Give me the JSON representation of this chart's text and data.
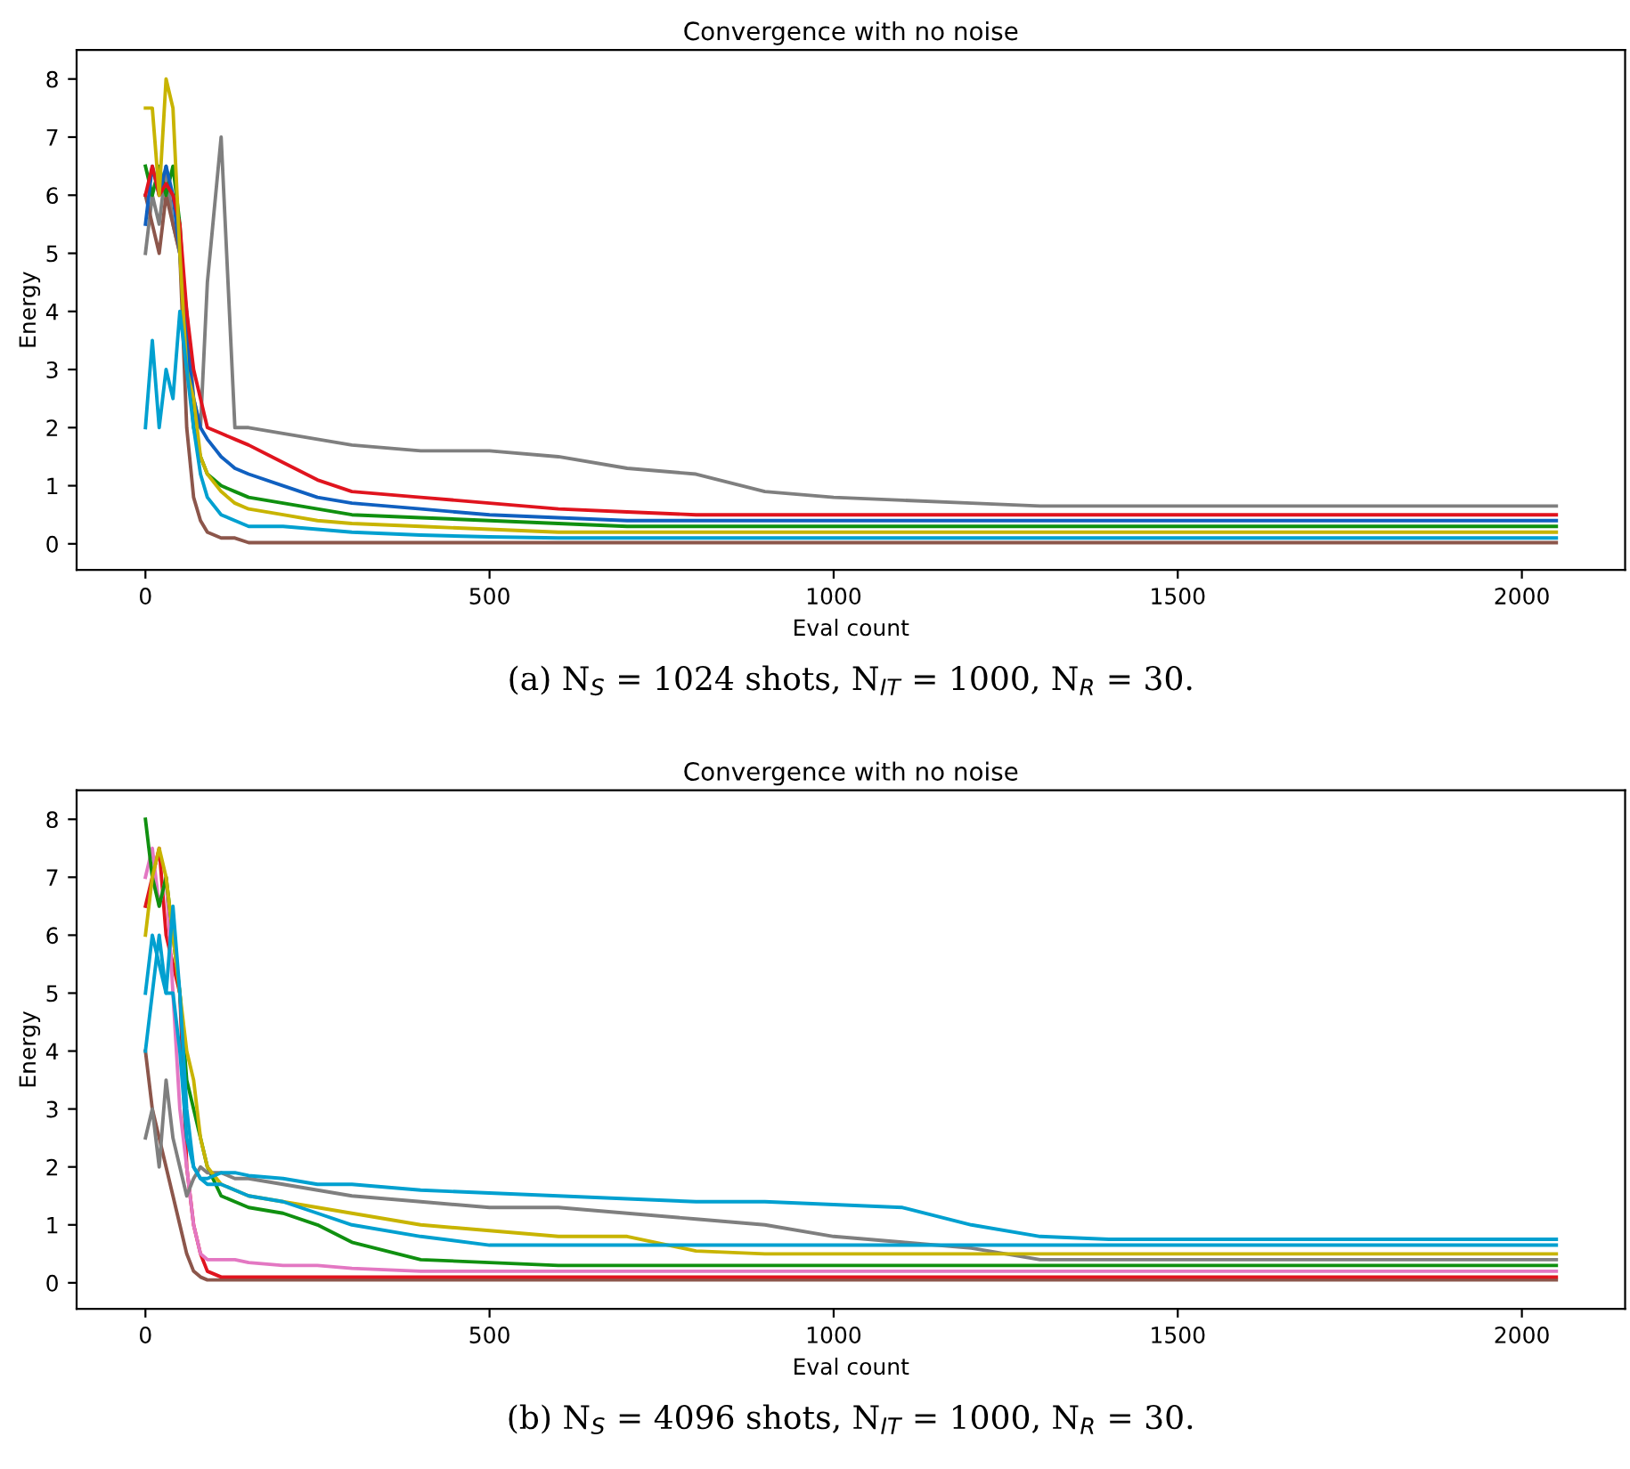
{
  "chart_data": [
    {
      "type": "line",
      "title": "Convergence with no noise",
      "xlabel": "Eval count",
      "ylabel": "Energy",
      "annotations": [
        "(a) N$_{S}$ = 1024 shots, N$_{IT}$ = 1000, N$_{R}$ = 30."
      ],
      "xlim": [
        -100,
        2150
      ],
      "ylim": [
        -0.45,
        8.5
      ],
      "xticks": [
        0,
        500,
        1000,
        1500,
        2000
      ],
      "yticks": [
        0,
        1,
        2,
        3,
        4,
        5,
        6,
        7,
        8
      ],
      "grid": false,
      "x": [
        0,
        10,
        20,
        30,
        40,
        50,
        60,
        70,
        80,
        90,
        110,
        130,
        150,
        200,
        250,
        300,
        400,
        500,
        600,
        700,
        800,
        900,
        1000,
        1100,
        1200,
        1300,
        1400,
        1500,
        1600,
        1700,
        1800,
        1900,
        2000,
        2050
      ],
      "series": [
        {
          "color": "#7f7f7f",
          "values": [
            5,
            6,
            5.5,
            6.5,
            5.5,
            5,
            4,
            2.5,
            2,
            4.5,
            7,
            2,
            2,
            1.9,
            1.8,
            1.7,
            1.6,
            1.6,
            1.5,
            1.3,
            1.2,
            0.9,
            0.8,
            0.75,
            0.7,
            0.65,
            0.65,
            0.65,
            0.65,
            0.65,
            0.65,
            0.65,
            0.65,
            0.65
          ]
        },
        {
          "color": "#8c564b",
          "values": [
            6,
            5.5,
            5,
            6,
            5.5,
            5,
            2,
            0.8,
            0.4,
            0.2,
            0.1,
            0.1,
            0.02,
            0.02,
            0.02,
            0.02,
            0.02,
            0.02,
            0.02,
            0.02,
            0.02,
            0.02,
            0.02,
            0.02,
            0.02,
            0.02,
            0.02,
            0.02,
            0.02,
            0.02,
            0.02,
            0.02,
            0.02,
            0.02
          ]
        },
        {
          "color": "#109010",
          "values": [
            6.5,
            6,
            6.5,
            6,
            6.5,
            5.5,
            3.5,
            2,
            1.5,
            1.2,
            1,
            0.9,
            0.8,
            0.7,
            0.6,
            0.5,
            0.45,
            0.4,
            0.35,
            0.3,
            0.3,
            0.3,
            0.3,
            0.3,
            0.3,
            0.3,
            0.3,
            0.3,
            0.3,
            0.3,
            0.3,
            0.3,
            0.3,
            0.3
          ]
        },
        {
          "color": "#1060c0",
          "values": [
            5.5,
            6.5,
            6,
            6.5,
            6,
            5,
            3.5,
            2.5,
            2,
            1.8,
            1.5,
            1.3,
            1.2,
            1.0,
            0.8,
            0.7,
            0.6,
            0.5,
            0.45,
            0.4,
            0.4,
            0.4,
            0.4,
            0.4,
            0.4,
            0.4,
            0.4,
            0.4,
            0.4,
            0.4,
            0.4,
            0.4,
            0.4,
            0.4
          ]
        },
        {
          "color": "#e0141e",
          "values": [
            6,
            6.5,
            6,
            6.2,
            6,
            5.5,
            4,
            3,
            2.5,
            2,
            1.9,
            1.8,
            1.7,
            1.4,
            1.1,
            0.9,
            0.8,
            0.7,
            0.6,
            0.55,
            0.5,
            0.5,
            0.5,
            0.5,
            0.5,
            0.5,
            0.5,
            0.5,
            0.5,
            0.5,
            0.5,
            0.5,
            0.5,
            0.5
          ]
        },
        {
          "color": "#c8b400",
          "values": [
            7.5,
            7.5,
            6,
            8,
            7.5,
            5,
            3,
            2.5,
            1.5,
            1.2,
            0.9,
            0.7,
            0.6,
            0.5,
            0.4,
            0.35,
            0.3,
            0.25,
            0.2,
            0.2,
            0.2,
            0.2,
            0.2,
            0.2,
            0.2,
            0.2,
            0.2,
            0.2,
            0.2,
            0.2,
            0.2,
            0.2,
            0.2,
            0.2
          ]
        },
        {
          "color": "#00a0d0",
          "values": [
            2,
            3.5,
            2,
            3,
            2.5,
            4,
            3,
            2,
            1.2,
            0.8,
            0.5,
            0.4,
            0.3,
            0.3,
            0.25,
            0.2,
            0.15,
            0.12,
            0.1,
            0.1,
            0.1,
            0.1,
            0.1,
            0.1,
            0.1,
            0.1,
            0.1,
            0.1,
            0.1,
            0.1,
            0.1,
            0.1,
            0.1,
            0.1
          ]
        }
      ]
    },
    {
      "type": "line",
      "title": "Convergence with no noise",
      "xlabel": "Eval count",
      "ylabel": "Energy",
      "annotations": [
        "(b) N$_{S}$ = 4096 shots, N$_{IT}$ = 1000, N$_{R}$ = 30."
      ],
      "xlim": [
        -100,
        2150
      ],
      "ylim": [
        -0.45,
        8.5
      ],
      "xticks": [
        0,
        500,
        1000,
        1500,
        2000
      ],
      "yticks": [
        0,
        1,
        2,
        3,
        4,
        5,
        6,
        7,
        8
      ],
      "grid": false,
      "x": [
        0,
        10,
        20,
        30,
        40,
        50,
        60,
        70,
        80,
        90,
        110,
        130,
        150,
        200,
        250,
        300,
        400,
        500,
        600,
        700,
        800,
        900,
        1000,
        1100,
        1200,
        1300,
        1400,
        1500,
        1600,
        1700,
        1800,
        1900,
        2000,
        2050
      ],
      "series": [
        {
          "color": "#8c564b",
          "values": [
            4,
            3,
            2.5,
            2,
            1.5,
            1,
            0.5,
            0.2,
            0.1,
            0.05,
            0.05,
            0.05,
            0.05,
            0.05,
            0.05,
            0.05,
            0.05,
            0.05,
            0.05,
            0.05,
            0.05,
            0.05,
            0.05,
            0.05,
            0.05,
            0.05,
            0.05,
            0.05,
            0.05,
            0.05,
            0.05,
            0.05,
            0.05,
            0.05
          ]
        },
        {
          "color": "#e0141e",
          "values": [
            6.5,
            7,
            7.5,
            6,
            5.5,
            5,
            2,
            1,
            0.5,
            0.2,
            0.1,
            0.1,
            0.1,
            0.1,
            0.1,
            0.1,
            0.1,
            0.1,
            0.1,
            0.1,
            0.1,
            0.1,
            0.1,
            0.1,
            0.1,
            0.1,
            0.1,
            0.1,
            0.1,
            0.1,
            0.1,
            0.1,
            0.1,
            0.1
          ]
        },
        {
          "color": "#e377c2",
          "values": [
            7,
            7.5,
            6.5,
            7,
            5,
            3,
            2,
            1,
            0.5,
            0.4,
            0.4,
            0.4,
            0.35,
            0.3,
            0.3,
            0.25,
            0.2,
            0.2,
            0.2,
            0.2,
            0.2,
            0.2,
            0.2,
            0.2,
            0.2,
            0.2,
            0.2,
            0.2,
            0.2,
            0.2,
            0.2,
            0.2,
            0.2,
            0.2
          ]
        },
        {
          "color": "#109010",
          "values": [
            8,
            7,
            6.5,
            7,
            6,
            5,
            3.5,
            3,
            2.5,
            2,
            1.5,
            1.4,
            1.3,
            1.2,
            1.0,
            0.7,
            0.4,
            0.35,
            0.3,
            0.3,
            0.3,
            0.3,
            0.3,
            0.3,
            0.3,
            0.3,
            0.3,
            0.3,
            0.3,
            0.3,
            0.3,
            0.3,
            0.3,
            0.3
          ]
        },
        {
          "color": "#7f7f7f",
          "values": [
            2.5,
            3,
            2,
            3.5,
            2.5,
            2,
            1.5,
            1.8,
            2,
            1.9,
            1.9,
            1.8,
            1.8,
            1.7,
            1.6,
            1.5,
            1.4,
            1.3,
            1.3,
            1.2,
            1.1,
            1.0,
            0.8,
            0.7,
            0.6,
            0.4,
            0.4,
            0.4,
            0.4,
            0.4,
            0.4,
            0.4,
            0.4,
            0.4
          ]
        },
        {
          "color": "#c8b400",
          "values": [
            6,
            7,
            7.5,
            7,
            6,
            5,
            4,
            3.5,
            2.5,
            2,
            1.7,
            1.6,
            1.5,
            1.4,
            1.3,
            1.2,
            1.0,
            0.9,
            0.8,
            0.8,
            0.55,
            0.5,
            0.5,
            0.5,
            0.5,
            0.5,
            0.5,
            0.5,
            0.5,
            0.5,
            0.5,
            0.5,
            0.5,
            0.5
          ]
        },
        {
          "color": "#00a0d0",
          "values": [
            4,
            5,
            6,
            5,
            5,
            4,
            2.5,
            2,
            1.8,
            1.7,
            1.7,
            1.6,
            1.5,
            1.4,
            1.2,
            1.0,
            0.8,
            0.65,
            0.65,
            0.65,
            0.65,
            0.65,
            0.65,
            0.65,
            0.65,
            0.65,
            0.65,
            0.65,
            0.65,
            0.65,
            0.65,
            0.65,
            0.65,
            0.65
          ]
        },
        {
          "color": "#00a0d0",
          "values": [
            5,
            6,
            5.5,
            5,
            6.5,
            5,
            3,
            2,
            1.8,
            1.8,
            1.9,
            1.9,
            1.85,
            1.8,
            1.7,
            1.7,
            1.6,
            1.55,
            1.5,
            1.45,
            1.4,
            1.4,
            1.35,
            1.3,
            1.0,
            0.8,
            0.75,
            0.75,
            0.75,
            0.75,
            0.75,
            0.75,
            0.75,
            0.75
          ]
        }
      ]
    }
  ]
}
